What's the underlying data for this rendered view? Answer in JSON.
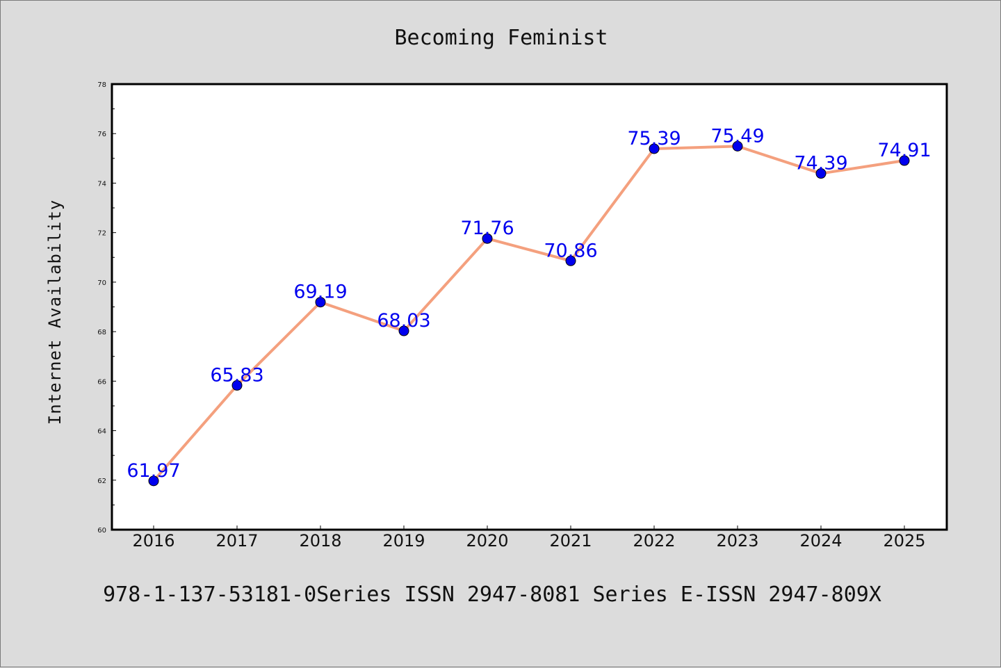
{
  "chart_data": {
    "type": "line",
    "title": "Becoming Feminist",
    "xlabel": "",
    "ylabel": "Internet Availability",
    "x": [
      "2016",
      "2017",
      "2018",
      "2019",
      "2020",
      "2021",
      "2022",
      "2023",
      "2024",
      "2025"
    ],
    "series": [
      {
        "values": [
          61.97,
          65.83,
          69.19,
          68.03,
          71.76,
          70.86,
          75.39,
          75.49,
          74.39,
          74.91
        ],
        "data_labels": [
          "61.97",
          "65.83",
          "69.19",
          "68.03",
          "71.76",
          "70.86",
          "75.39",
          "75.49",
          "74.39",
          "74.91"
        ],
        "line_color": "#f4a07e",
        "marker_color": "#0000ee",
        "label_color": "#0000ee"
      }
    ],
    "ylim": [
      60,
      78
    ],
    "yticks": [
      "60",
      "62",
      "64",
      "66",
      "68",
      "70",
      "72",
      "74",
      "76",
      "78"
    ],
    "grid": false,
    "legend": "none"
  },
  "footer_text": "978-1-137-53181-0Series ISSN 2947-8081 Series E-ISSN 2947-809X",
  "colors": {
    "background": "#dcdcdc",
    "plot_area": "#ffffff",
    "axes_frame": "#000000"
  }
}
